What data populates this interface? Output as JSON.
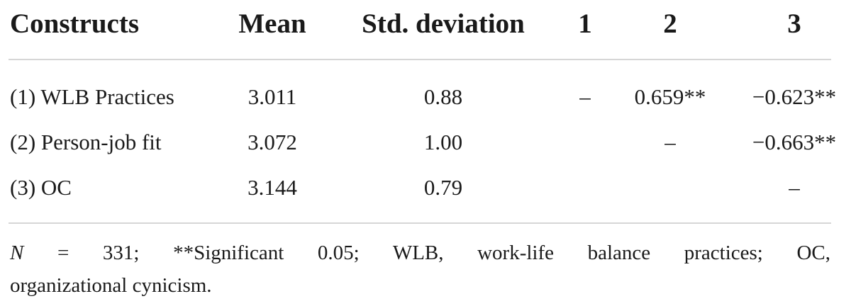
{
  "table": {
    "headers": [
      "Constructs",
      "Mean",
      "Std. deviation",
      "1",
      "2",
      "3"
    ],
    "rows": [
      {
        "construct": "(1) WLB Practices",
        "mean": "3.011",
        "sd": "0.88",
        "c1": "–",
        "c2": "0.659**",
        "c3": "−0.623**"
      },
      {
        "construct": "(2) Person-job fit",
        "mean": "3.072",
        "sd": "1.00",
        "c1": "",
        "c2": "–",
        "c3": "−0.663**"
      },
      {
        "construct": "(3) OC",
        "mean": "3.144",
        "sd": "0.79",
        "c1": "",
        "c2": "",
        "c3": "–"
      }
    ]
  },
  "footnote": {
    "n_label": "N",
    "line1_rest": " = 331; **Significant 0.05; WLB, work-life balance practices; OC,",
    "line2": "organizational cynicism."
  }
}
